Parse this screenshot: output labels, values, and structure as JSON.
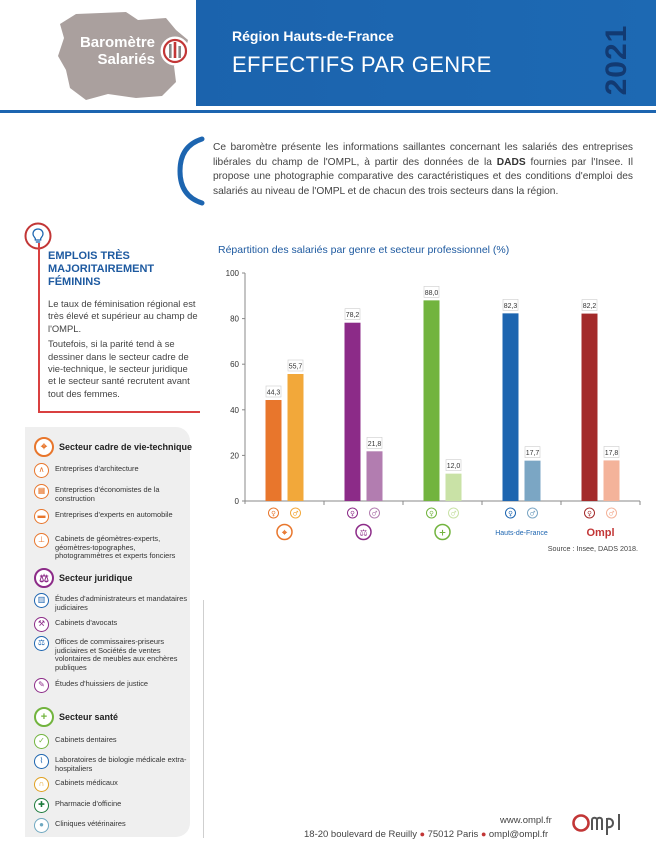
{
  "header": {
    "logo_line1": "Baromètre",
    "logo_line2": "Salariés",
    "region_title": "Région Hauts-de-France",
    "main_title": "EFFECTIFS PAR GENRE",
    "year": "2021",
    "colors": {
      "blue": "#1d65b0",
      "year": "#123a72",
      "map": "#aaa09e"
    }
  },
  "intro": {
    "part1": "Ce baromètre présente les informations saillantes concernant les salariés des entreprises libérales du champ de l'OMPL, à partir des données de la ",
    "emph": "DADS",
    "part2": " fournies par l'Insee. Il propose une photographie comparative des caractéristiques et des conditions d'emploi des salariés au niveau de l'OMPL et de chacun des trois secteurs dans la région."
  },
  "emplois": {
    "title": "EMPLOIS TRÈS MAJORITAIREMENT FÉMININS",
    "p1": "Le taux de féminisation régional est très élevé et supérieur au champ de l'OMPL.",
    "p2": "Toutefois, si la parité tend à se dessiner dans le secteur cadre de vie-technique, le secteur juridique et le secteur santé recrutent avant tout des femmes."
  },
  "sectors": {
    "cadre": {
      "label": "Secteur cadre de vie-technique",
      "color": "#e8762c",
      "items": [
        {
          "label": "Entreprises d'architecture",
          "icon": "compass-icon"
        },
        {
          "label": "Entreprises d'économistes de la construction",
          "icon": "bricks-icon"
        },
        {
          "label": "Entreprises d'experts en automobile",
          "icon": "car-icon"
        },
        {
          "label": "Cabinets de géomètres-experts, géomètres-topographes, photogrammètres et experts fonciers",
          "icon": "theodolite-icon"
        }
      ]
    },
    "juridique": {
      "label": "Secteur juridique",
      "color": "#8c2b88",
      "items": [
        {
          "label": "Études d'administrateurs et mandataires judiciaires",
          "icon": "building-icon"
        },
        {
          "label": "Cabinets d'avocats",
          "icon": "gavel-icon"
        },
        {
          "label": "Offices de commissaires-priseurs judiciaires et Sociétés de ventes volontaires de meubles aux enchères publiques",
          "icon": "auction-icon"
        },
        {
          "label": "Études d'huissiers de justice",
          "icon": "document-icon"
        }
      ]
    },
    "sante": {
      "label": "Secteur santé",
      "color": "#72b43e",
      "items": [
        {
          "label": "Cabinets dentaires",
          "icon": "tooth-icon"
        },
        {
          "label": "Laboratoires de biologie médicale extra-hospitaliers",
          "icon": "microscope-icon"
        },
        {
          "label": "Cabinets médicaux",
          "icon": "stethoscope-icon"
        },
        {
          "label": "Pharmacie d'officine",
          "icon": "pharmacy-cross-icon"
        },
        {
          "label": "Cliniques vétérinaires",
          "icon": "paw-icon"
        }
      ]
    }
  },
  "chart_data": {
    "type": "bar",
    "title": "Répartition des salariés par genre et secteur professionnel (%)",
    "source": "Source : Insee, DADS 2018.",
    "ylim": [
      0,
      100
    ],
    "yticks": [
      0,
      20,
      40,
      60,
      80,
      100
    ],
    "grid": false,
    "groups": [
      {
        "label": "",
        "icon": "cadre-vie-technique-icon",
        "color_dark": "#e8762c",
        "color_light": "#f2a83a",
        "values": [
          44.3,
          55.7
        ],
        "value_labels": [
          "44,3",
          "55,7"
        ]
      },
      {
        "label": "",
        "icon": "juridique-icon",
        "color_dark": "#8c2b88",
        "color_light": "#b27db0",
        "values": [
          78.2,
          21.8
        ],
        "value_labels": [
          "78,2",
          "21,8"
        ]
      },
      {
        "label": "",
        "icon": "sante-icon",
        "color_dark": "#72b43e",
        "color_light": "#c9e2a6",
        "values": [
          88.0,
          12.0
        ],
        "value_labels": [
          "88,0",
          "12,0"
        ]
      },
      {
        "label": "Hauts-de-France",
        "icon": "",
        "color_dark": "#1d65b0",
        "color_light": "#7ba6c4",
        "values": [
          82.3,
          17.7
        ],
        "value_labels": [
          "82,3",
          "17,7"
        ]
      },
      {
        "label": "Ompl",
        "icon": "",
        "color_dark": "#a32a2a",
        "color_light": "#f4b39a",
        "values": [
          82.2,
          17.8
        ],
        "value_labels": [
          "82,2",
          "17,8"
        ]
      }
    ],
    "series": [
      {
        "name": "",
        "icon": "female-icon"
      },
      {
        "name": "",
        "icon": "male-icon"
      }
    ]
  },
  "footer": {
    "url": "www.ompl.fr",
    "address": "18-20 boulevard de Reuilly",
    "city": "75012 Paris",
    "email": "ompl@ompl.fr",
    "logo": "Ompl"
  }
}
